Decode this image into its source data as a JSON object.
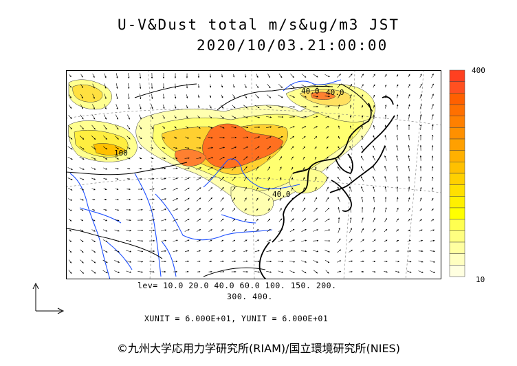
{
  "title": {
    "line1": "U-V&Dust total m/s&ug/m3 JST",
    "line2": "2020/10/03.21:00:00"
  },
  "legend": {
    "levels_line1": "lev= 10.0 20.0 40.0 60.0 100. 150. 200.",
    "levels_line2": "300. 400.",
    "units_line": "XUNIT = 6.000E+01, YUNIT = 6.000E+01",
    "colorbar_max": "400",
    "colorbar_min": "10",
    "colorbar_colors": [
      "#ffffe0",
      "#ffffc0",
      "#ffffa0",
      "#ffff80",
      "#ffff50",
      "#ffff00",
      "#fff000",
      "#ffe000",
      "#ffd000",
      "#ffc000",
      "#ffb000",
      "#ffa000",
      "#ff9000",
      "#ff8000",
      "#ff7000",
      "#ff6000",
      "#ff5020",
      "#ff4020"
    ]
  },
  "map_labels": {
    "contour_a": "40.0",
    "contour_b": "40.0",
    "contour_c": "100",
    "contour_d": "40.0"
  },
  "credit": "©九州大学応用力学研究所(RIAM)/国立環境研究所(NIES)"
}
